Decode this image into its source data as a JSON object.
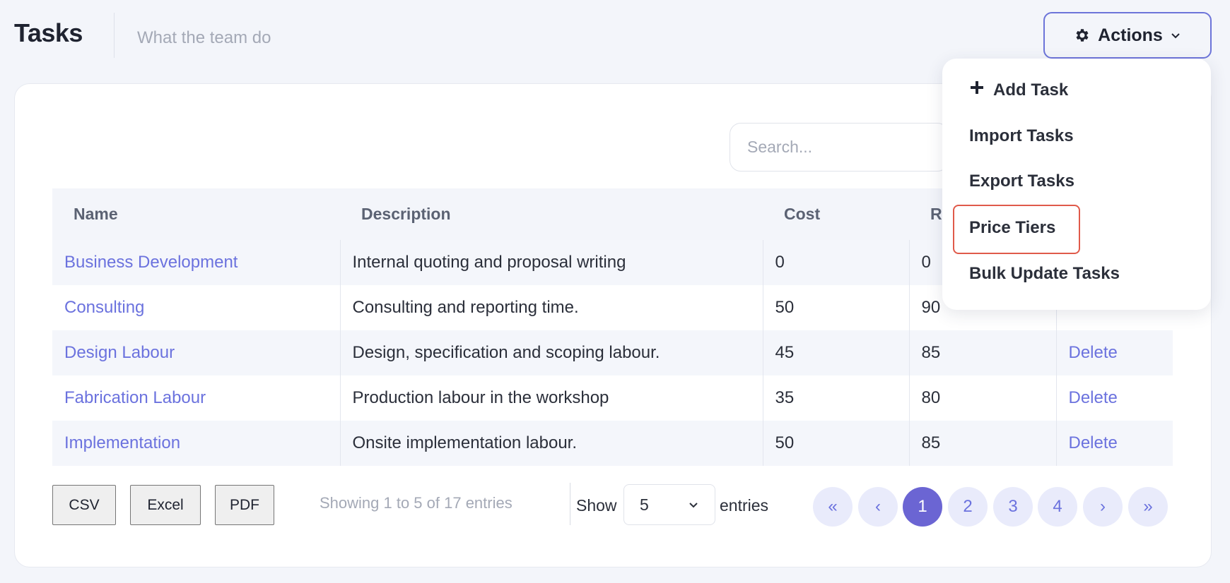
{
  "header": {
    "title": "Tasks",
    "subtitle": "What the team do",
    "actions_label": "Actions",
    "actions_icon": "gear-icon"
  },
  "search": {
    "placeholder": "Search..."
  },
  "table": {
    "columns": [
      "Name",
      "Description",
      "Cost",
      "R"
    ],
    "rows": [
      {
        "name": "Business Development",
        "description": "Internal quoting and proposal writing",
        "cost": "0",
        "rate": "0",
        "action": ""
      },
      {
        "name": "Consulting",
        "description": "Consulting and reporting time.",
        "cost": "50",
        "rate": "90",
        "action": ""
      },
      {
        "name": "Design Labour",
        "description": "Design, specification and scoping labour.",
        "cost": "45",
        "rate": "85",
        "action": "Delete"
      },
      {
        "name": "Fabrication Labour",
        "description": "Production labour in the workshop",
        "cost": "35",
        "rate": "80",
        "action": "Delete"
      },
      {
        "name": "Implementation",
        "description": "Onsite implementation labour.",
        "cost": "50",
        "rate": "85",
        "action": "Delete"
      }
    ]
  },
  "footer": {
    "export_buttons": [
      "CSV",
      "Excel",
      "PDF"
    ],
    "showing_text": "Showing 1 to 5 of 17 entries",
    "show_label": "Show",
    "page_length": "5",
    "entries_label": "entries",
    "pagination": {
      "first": "«",
      "prev": "‹",
      "pages": [
        "1",
        "2",
        "3",
        "4"
      ],
      "current": "1",
      "next": "›",
      "last": "»"
    }
  },
  "menu": {
    "items": [
      {
        "label": "Add Task",
        "icon": "plus-icon"
      },
      {
        "label": "Import Tasks"
      },
      {
        "label": "Export Tasks"
      },
      {
        "label": "Price Tiers"
      },
      {
        "label": "Bulk Update Tasks"
      }
    ],
    "highlighted": "Price Tiers",
    "highlight_color": "#e05a4a"
  },
  "colors": {
    "accent": "#6b72de",
    "active_page": "#6b65d3",
    "background": "#f3f5fa"
  }
}
